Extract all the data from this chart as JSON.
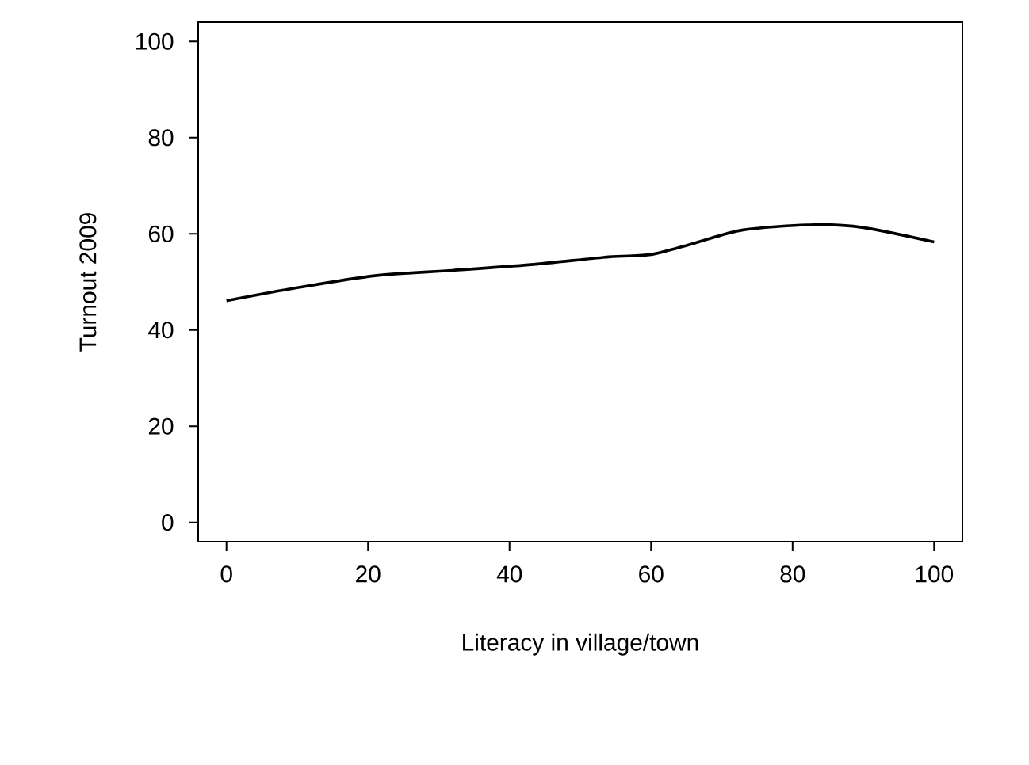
{
  "chart_data": {
    "type": "line",
    "xlabel": "Literacy in village/town",
    "ylabel": "Turnout 2009",
    "x": [
      0,
      10,
      21,
      32,
      43,
      54,
      60,
      66,
      73,
      83,
      90,
      100
    ],
    "values": [
      46.1,
      48.8,
      51.3,
      52.4,
      53.6,
      55.2,
      55.7,
      58.0,
      60.8,
      61.9,
      61.3,
      58.3
    ],
    "color": "#000000",
    "marker": "none",
    "line_style": "solid",
    "xlim": [
      -4,
      104
    ],
    "ylim": [
      -4,
      104
    ],
    "xticks": [
      0,
      20,
      40,
      60,
      80,
      100
    ],
    "yticks": [
      0,
      20,
      40,
      60,
      80,
      100
    ]
  }
}
